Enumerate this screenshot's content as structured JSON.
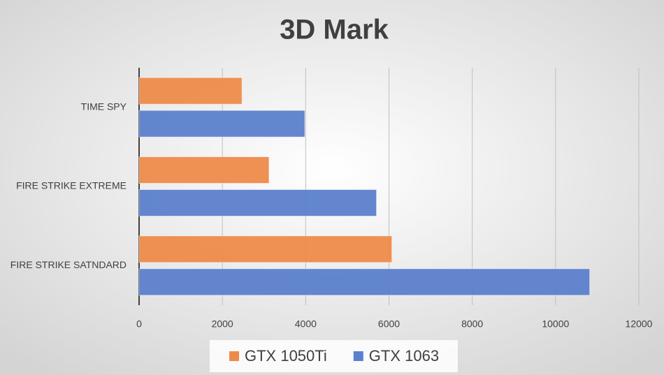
{
  "chart_data": {
    "type": "bar",
    "orientation": "horizontal",
    "title": "3D Mark",
    "categories": [
      "TIME SPY",
      "FIRE STRIKE EXTREME",
      "FIRE STRIKE SATNDARD"
    ],
    "series": [
      {
        "name": "GTX 1050Ti",
        "color": "#ed8b4a",
        "values": [
          2470,
          3120,
          6070
        ]
      },
      {
        "name": "GTX 1063",
        "color": "#5b80cc",
        "values": [
          3980,
          5700,
          10820
        ]
      }
    ],
    "xlim": [
      0,
      12000
    ],
    "xticks": [
      0,
      2000,
      4000,
      6000,
      8000,
      10000,
      12000
    ],
    "grid": true,
    "legend": "bottom"
  }
}
